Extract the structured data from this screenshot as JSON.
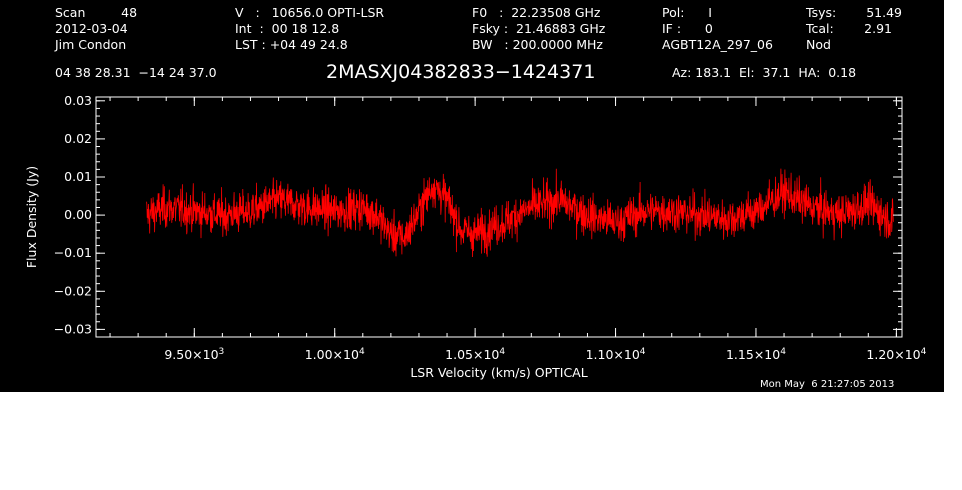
{
  "header": {
    "col1": [
      "Scan         48",
      "2012-03-04",
      "Jim Condon"
    ],
    "col2": [
      "V   :   10656.0 OPTI-LSR",
      "Int  :  00 18 12.8",
      "LST : +04 49 24.8"
    ],
    "col3": [
      "F0   :  22.23508 GHz",
      "Fsky :  21.46883 GHz",
      "BW   : 200.0000 MHz"
    ],
    "col4": [
      "Pol:      I",
      "IF :      0",
      "AGBT12A_297_06"
    ],
    "col5": [
      "Tsys:",
      "Tcal:",
      "Nod"
    ],
    "col6": [
      "51.49",
      "2.91",
      ""
    ],
    "coords": "04 38 28.31  −14 24 37.0",
    "source": "2MASXJ04382833−1424371",
    "az": "Az: 183.1  El:  37.1  HA:  0.18",
    "timestamp": "Mon May  6 21:27:05 2013"
  },
  "chart_data": {
    "type": "line",
    "xlabel": "LSR Velocity (km/s) OPTICAL",
    "ylabel": "Flux Density (Jy)",
    "xlim": [
      9150,
      12020
    ],
    "ylim": [
      -0.032,
      0.031
    ],
    "yticks": [
      {
        "value": 0.03,
        "label": "0.03"
      },
      {
        "value": 0.02,
        "label": "0.02"
      },
      {
        "value": 0.01,
        "label": "0.01"
      },
      {
        "value": 0.0,
        "label": "0.00"
      },
      {
        "value": -0.01,
        "label": "−0.01"
      },
      {
        "value": -0.02,
        "label": "−0.02"
      },
      {
        "value": -0.03,
        "label": "−0.03"
      }
    ],
    "xticks": [
      {
        "value": 9500,
        "mant": "9.50×10",
        "exp": "3"
      },
      {
        "value": 10000,
        "mant": "1.00×10",
        "exp": "4"
      },
      {
        "value": 10500,
        "mant": "1.05×10",
        "exp": "4"
      },
      {
        "value": 11000,
        "mant": "1.10×10",
        "exp": "4"
      },
      {
        "value": 11500,
        "mant": "1.15×10",
        "exp": "4"
      },
      {
        "value": 12000,
        "mant": "1.20×10",
        "exp": "4"
      }
    ],
    "series": [
      {
        "color": "#ff0000",
        "x_range": [
          9330,
          11990
        ],
        "trend": [
          [
            9330,
            0.0
          ],
          [
            9400,
            0.002
          ],
          [
            9500,
            0.001
          ],
          [
            9600,
            0.0
          ],
          [
            9700,
            0.001
          ],
          [
            9800,
            0.004
          ],
          [
            9900,
            0.002
          ],
          [
            10000,
            0.001
          ],
          [
            10100,
            0.002
          ],
          [
            10150,
            0.0
          ],
          [
            10200,
            -0.005
          ],
          [
            10250,
            -0.006
          ],
          [
            10300,
            0.001
          ],
          [
            10350,
            0.008
          ],
          [
            10400,
            0.004
          ],
          [
            10450,
            -0.004
          ],
          [
            10500,
            -0.005
          ],
          [
            10600,
            -0.002
          ],
          [
            10700,
            0.002
          ],
          [
            10800,
            0.004
          ],
          [
            10900,
            0.0
          ],
          [
            11000,
            -0.002
          ],
          [
            11100,
            0.001
          ],
          [
            11200,
            0.001
          ],
          [
            11300,
            0.0
          ],
          [
            11400,
            -0.001
          ],
          [
            11500,
            0.001
          ],
          [
            11600,
            0.006
          ],
          [
            11700,
            0.002
          ],
          [
            11800,
            0.0
          ],
          [
            11900,
            0.003
          ],
          [
            11990,
            -0.002
          ]
        ],
        "noise_amplitude": 0.0045
      }
    ]
  }
}
